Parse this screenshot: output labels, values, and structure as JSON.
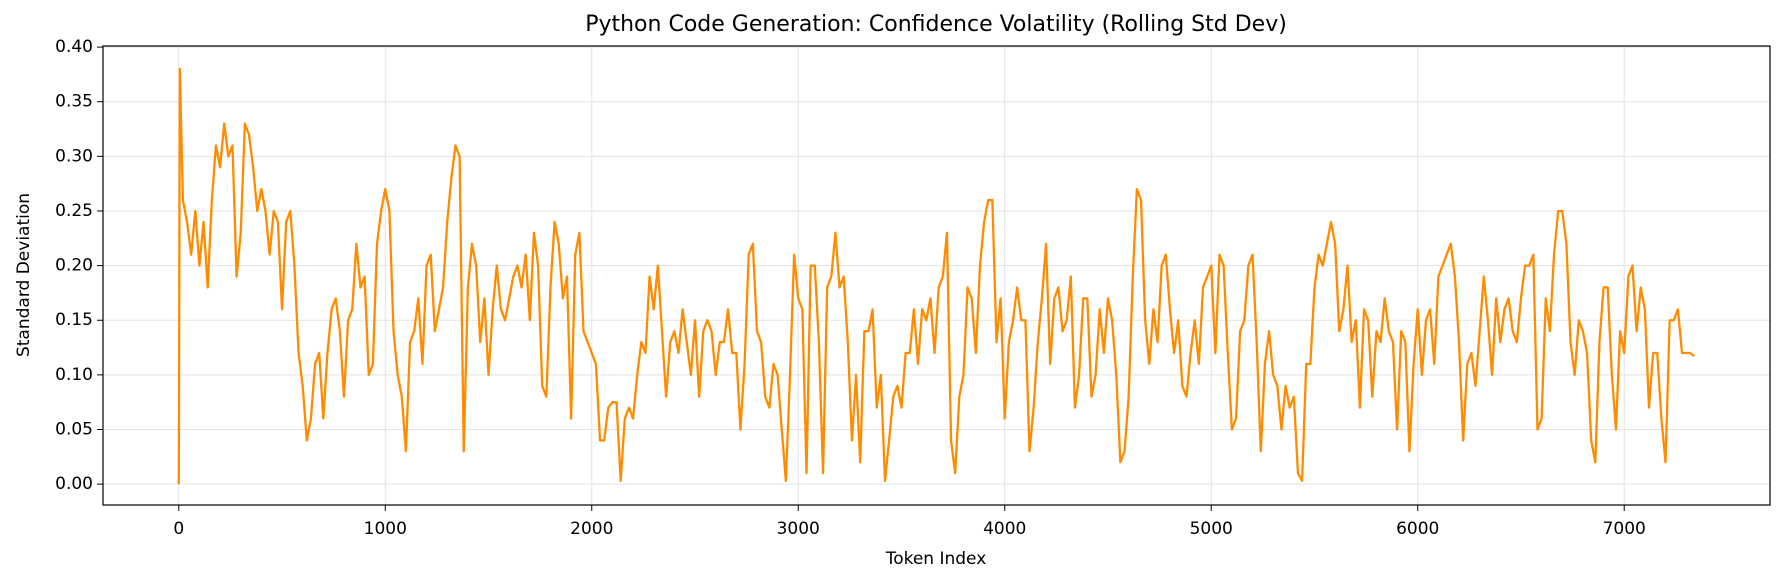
{
  "chart_data": {
    "type": "line",
    "title": "Python Code Generation: Confidence Volatility (Rolling Std Dev)",
    "x_label": "Token Index",
    "y_label": "Standard Deviation",
    "color": "#ff8c00",
    "grid": true,
    "xlim": [
      -367,
      7706
    ],
    "ylim": [
      -0.0191,
      0.401
    ],
    "xticks": [
      0,
      1000,
      2000,
      3000,
      4000,
      5000,
      6000,
      7000
    ],
    "yticks": [
      {
        "value": 0,
        "label": "0.00"
      },
      0.05,
      {
        "value": 0.1,
        "label": "0.10"
      },
      0.15,
      {
        "value": 0.2,
        "label": "0.20"
      },
      0.25,
      {
        "value": 0.3,
        "label": "0.30"
      },
      0.35,
      {
        "value": 0.4,
        "label": "0.40"
      }
    ],
    "x": [
      0,
      5,
      20,
      40,
      60,
      80,
      100,
      120,
      140,
      160,
      180,
      200,
      220,
      240,
      260,
      280,
      300,
      320,
      340,
      360,
      380,
      400,
      420,
      440,
      460,
      480,
      500,
      520,
      540,
      560,
      580,
      600,
      620,
      640,
      660,
      680,
      700,
      720,
      740,
      760,
      780,
      800,
      820,
      840,
      860,
      880,
      900,
      920,
      940,
      960,
      980,
      1000,
      1020,
      1040,
      1060,
      1080,
      1100,
      1120,
      1140,
      1160,
      1180,
      1200,
      1220,
      1240,
      1260,
      1280,
      1300,
      1320,
      1340,
      1360,
      1380,
      1400,
      1420,
      1440,
      1460,
      1480,
      1500,
      1520,
      1540,
      1560,
      1580,
      1600,
      1620,
      1640,
      1660,
      1680,
      1700,
      1720,
      1740,
      1760,
      1780,
      1800,
      1820,
      1840,
      1860,
      1880,
      1900,
      1920,
      1940,
      1960,
      1980,
      2000,
      2020,
      2040,
      2060,
      2080,
      2100,
      2120,
      2140,
      2160,
      2180,
      2200,
      2220,
      2240,
      2260,
      2280,
      2300,
      2320,
      2340,
      2360,
      2380,
      2400,
      2420,
      2440,
      2460,
      2480,
      2500,
      2520,
      2540,
      2560,
      2580,
      2600,
      2620,
      2640,
      2660,
      2680,
      2700,
      2720,
      2740,
      2760,
      2780,
      2800,
      2820,
      2840,
      2860,
      2880,
      2900,
      2920,
      2940,
      2960,
      2980,
      3000,
      3020,
      3040,
      3060,
      3080,
      3100,
      3120,
      3140,
      3160,
      3180,
      3200,
      3220,
      3240,
      3260,
      3280,
      3300,
      3320,
      3340,
      3360,
      3380,
      3400,
      3420,
      3440,
      3460,
      3480,
      3500,
      3520,
      3540,
      3560,
      3580,
      3600,
      3620,
      3640,
      3660,
      3680,
      3700,
      3720,
      3740,
      3760,
      3780,
      3800,
      3820,
      3840,
      3860,
      3880,
      3900,
      3920,
      3940,
      3960,
      3980,
      4000,
      4020,
      4040,
      4060,
      4080,
      4100,
      4120,
      4140,
      4160,
      4180,
      4200,
      4220,
      4240,
      4260,
      4280,
      4300,
      4320,
      4340,
      4360,
      4380,
      4400,
      4420,
      4440,
      4460,
      4480,
      4500,
      4520,
      4540,
      4560,
      4580,
      4600,
      4620,
      4640,
      4660,
      4680,
      4700,
      4720,
      4740,
      4760,
      4780,
      4800,
      4820,
      4840,
      4860,
      4880,
      4900,
      4920,
      4940,
      4960,
      4980,
      5000,
      5020,
      5040,
      5060,
      5080,
      5100,
      5120,
      5140,
      5160,
      5180,
      5200,
      5220,
      5240,
      5260,
      5280,
      5300,
      5320,
      5340,
      5360,
      5380,
      5400,
      5420,
      5440,
      5460,
      5480,
      5500,
      5520,
      5540,
      5560,
      5580,
      5600,
      5620,
      5640,
      5660,
      5680,
      5700,
      5720,
      5740,
      5760,
      5780,
      5800,
      5820,
      5840,
      5860,
      5880,
      5900,
      5920,
      5940,
      5960,
      5980,
      6000,
      6020,
      6040,
      6060,
      6080,
      6100,
      6120,
      6140,
      6160,
      6180,
      6200,
      6220,
      6240,
      6260,
      6280,
      6300,
      6320,
      6340,
      6360,
      6380,
      6400,
      6420,
      6440,
      6460,
      6480,
      6500,
      6520,
      6540,
      6560,
      6580,
      6600,
      6620,
      6640,
      6660,
      6680,
      6700,
      6720,
      6740,
      6760,
      6780,
      6800,
      6820,
      6840,
      6860,
      6880,
      6900,
      6920,
      6940,
      6960,
      6980,
      7000,
      7020,
      7040,
      7060,
      7080,
      7100,
      7120,
      7140,
      7160,
      7180,
      7200,
      7220,
      7240,
      7260,
      7280,
      7300,
      7320,
      7339
    ],
    "values": [
      0.0,
      0.38,
      0.26,
      0.24,
      0.21,
      0.25,
      0.2,
      0.24,
      0.18,
      0.26,
      0.31,
      0.29,
      0.33,
      0.3,
      0.31,
      0.19,
      0.23,
      0.33,
      0.32,
      0.29,
      0.25,
      0.27,
      0.25,
      0.21,
      0.25,
      0.24,
      0.16,
      0.24,
      0.25,
      0.2,
      0.12,
      0.09,
      0.04,
      0.06,
      0.11,
      0.12,
      0.06,
      0.12,
      0.16,
      0.17,
      0.14,
      0.08,
      0.15,
      0.16,
      0.22,
      0.18,
      0.19,
      0.1,
      0.11,
      0.22,
      0.25,
      0.27,
      0.25,
      0.14,
      0.1,
      0.08,
      0.03,
      0.13,
      0.14,
      0.17,
      0.11,
      0.2,
      0.21,
      0.14,
      0.16,
      0.18,
      0.24,
      0.28,
      0.31,
      0.3,
      0.03,
      0.18,
      0.22,
      0.2,
      0.13,
      0.17,
      0.1,
      0.16,
      0.2,
      0.16,
      0.15,
      0.17,
      0.19,
      0.2,
      0.18,
      0.21,
      0.15,
      0.23,
      0.2,
      0.09,
      0.08,
      0.18,
      0.24,
      0.22,
      0.17,
      0.19,
      0.06,
      0.21,
      0.23,
      0.14,
      0.13,
      0.12,
      0.11,
      0.04,
      0.04,
      0.07,
      0.075,
      0.075,
      0.003,
      0.06,
      0.07,
      0.06,
      0.1,
      0.13,
      0.12,
      0.19,
      0.16,
      0.2,
      0.14,
      0.08,
      0.13,
      0.14,
      0.12,
      0.16,
      0.13,
      0.1,
      0.15,
      0.08,
      0.14,
      0.15,
      0.14,
      0.1,
      0.13,
      0.13,
      0.16,
      0.12,
      0.12,
      0.05,
      0.11,
      0.21,
      0.22,
      0.14,
      0.13,
      0.08,
      0.07,
      0.11,
      0.1,
      0.05,
      0.003,
      0.1,
      0.21,
      0.17,
      0.16,
      0.01,
      0.2,
      0.2,
      0.13,
      0.01,
      0.18,
      0.19,
      0.23,
      0.18,
      0.19,
      0.13,
      0.04,
      0.1,
      0.02,
      0.14,
      0.14,
      0.16,
      0.07,
      0.1,
      0.003,
      0.04,
      0.08,
      0.09,
      0.07,
      0.12,
      0.12,
      0.16,
      0.11,
      0.16,
      0.15,
      0.17,
      0.12,
      0.18,
      0.19,
      0.23,
      0.04,
      0.01,
      0.08,
      0.1,
      0.18,
      0.17,
      0.12,
      0.2,
      0.24,
      0.26,
      0.26,
      0.13,
      0.17,
      0.06,
      0.13,
      0.15,
      0.18,
      0.15,
      0.15,
      0.03,
      0.07,
      0.13,
      0.17,
      0.22,
      0.11,
      0.17,
      0.18,
      0.14,
      0.15,
      0.19,
      0.07,
      0.1,
      0.17,
      0.17,
      0.08,
      0.1,
      0.16,
      0.12,
      0.17,
      0.15,
      0.1,
      0.02,
      0.03,
      0.08,
      0.19,
      0.27,
      0.26,
      0.15,
      0.11,
      0.16,
      0.13,
      0.2,
      0.21,
      0.16,
      0.12,
      0.15,
      0.09,
      0.08,
      0.12,
      0.15,
      0.11,
      0.18,
      0.19,
      0.2,
      0.12,
      0.21,
      0.2,
      0.12,
      0.05,
      0.06,
      0.14,
      0.15,
      0.2,
      0.21,
      0.13,
      0.03,
      0.11,
      0.14,
      0.1,
      0.09,
      0.05,
      0.09,
      0.07,
      0.08,
      0.01,
      0.003,
      0.11,
      0.11,
      0.18,
      0.21,
      0.2,
      0.22,
      0.24,
      0.22,
      0.14,
      0.16,
      0.2,
      0.13,
      0.15,
      0.07,
      0.16,
      0.15,
      0.08,
      0.14,
      0.13,
      0.17,
      0.14,
      0.13,
      0.05,
      0.14,
      0.13,
      0.03,
      0.11,
      0.16,
      0.1,
      0.15,
      0.16,
      0.11,
      0.19,
      0.2,
      0.21,
      0.22,
      0.19,
      0.13,
      0.04,
      0.11,
      0.12,
      0.09,
      0.14,
      0.19,
      0.15,
      0.1,
      0.17,
      0.13,
      0.16,
      0.17,
      0.14,
      0.13,
      0.17,
      0.2,
      0.2,
      0.21,
      0.05,
      0.06,
      0.17,
      0.14,
      0.21,
      0.25,
      0.25,
      0.22,
      0.13,
      0.1,
      0.15,
      0.14,
      0.12,
      0.04,
      0.02,
      0.13,
      0.18,
      0.18,
      0.1,
      0.05,
      0.14,
      0.12,
      0.19,
      0.2,
      0.14,
      0.18,
      0.16,
      0.07,
      0.12,
      0.12,
      0.06,
      0.02,
      0.15,
      0.15,
      0.16,
      0.12,
      0.12,
      0.12,
      0.117
    ]
  }
}
